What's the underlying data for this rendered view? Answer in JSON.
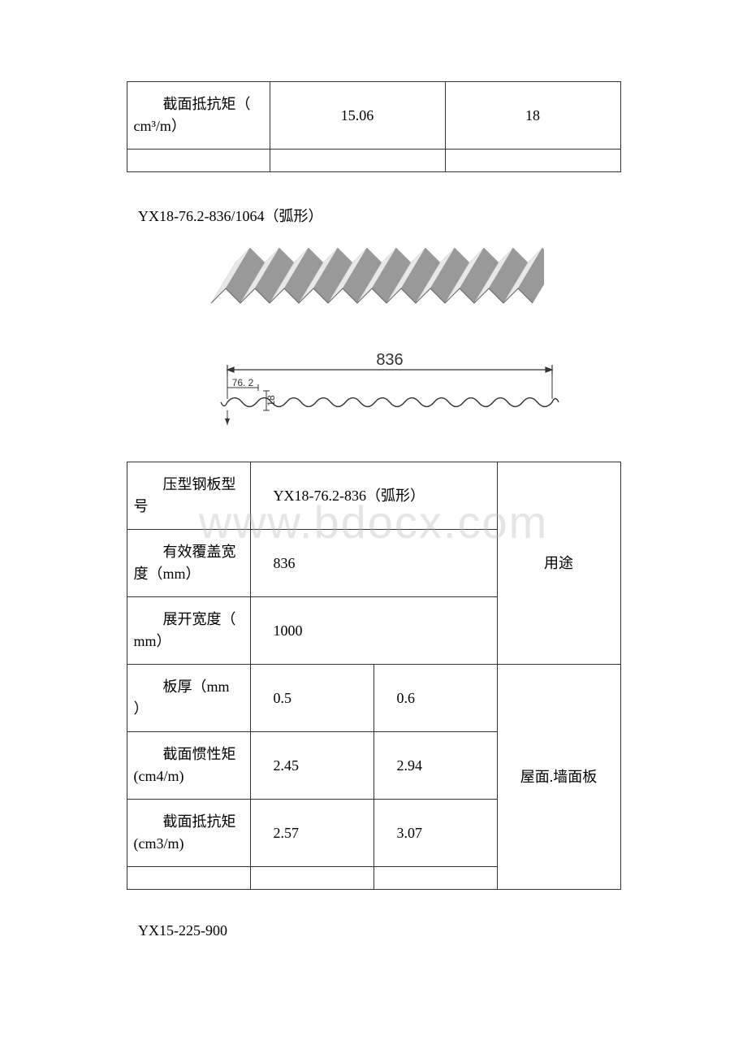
{
  "top_table": {
    "row_label_line1": "截面抵抗矩（",
    "row_label_line2": "cm³/m）",
    "val1": "15.06",
    "val2": "18"
  },
  "section1_title": "YX18-76.2-836/1064（弧形）",
  "diagram": {
    "width_label": "836",
    "pitch_label": "76. 2",
    "height_label": "18",
    "panel_color_light": "#f0f0f0",
    "panel_color_dark": "#b8b8b8",
    "panel_color_shadow": "#888888",
    "line_color": "#333333",
    "text_color": "#333333",
    "wave_count": 11,
    "wave_pitch": 76.2,
    "wave_height": 18,
    "total_width": 836
  },
  "main_table": {
    "rows": [
      {
        "label_l1": "压型钢板型",
        "label_l2": "号",
        "value": "YX18-76.2-836（弧形）",
        "span": 2
      },
      {
        "label_l1": "有效覆盖宽",
        "label_l2": "度（mm）",
        "value": "836",
        "span": 2
      },
      {
        "label_l1": "展开宽度（",
        "label_l2": "mm）",
        "value": "1000",
        "span": 2
      },
      {
        "label_l1": "板厚（mm",
        "label_l2": "）",
        "val1": "0.5",
        "val2": "0.6"
      },
      {
        "label_l1": "截面惯性矩",
        "label_l2": "(cm4/m)",
        "val1": "2.45",
        "val2": "2.94"
      },
      {
        "label_l1": "截面抵抗矩",
        "label_l2": "(cm3/m)",
        "val1": "2.57",
        "val2": "3.07"
      }
    ],
    "right_col_top": "用途",
    "right_col_bottom": "屋面.墙面板"
  },
  "section2_title": "YX15-225-900",
  "watermark_text": "www.bdocx.com"
}
